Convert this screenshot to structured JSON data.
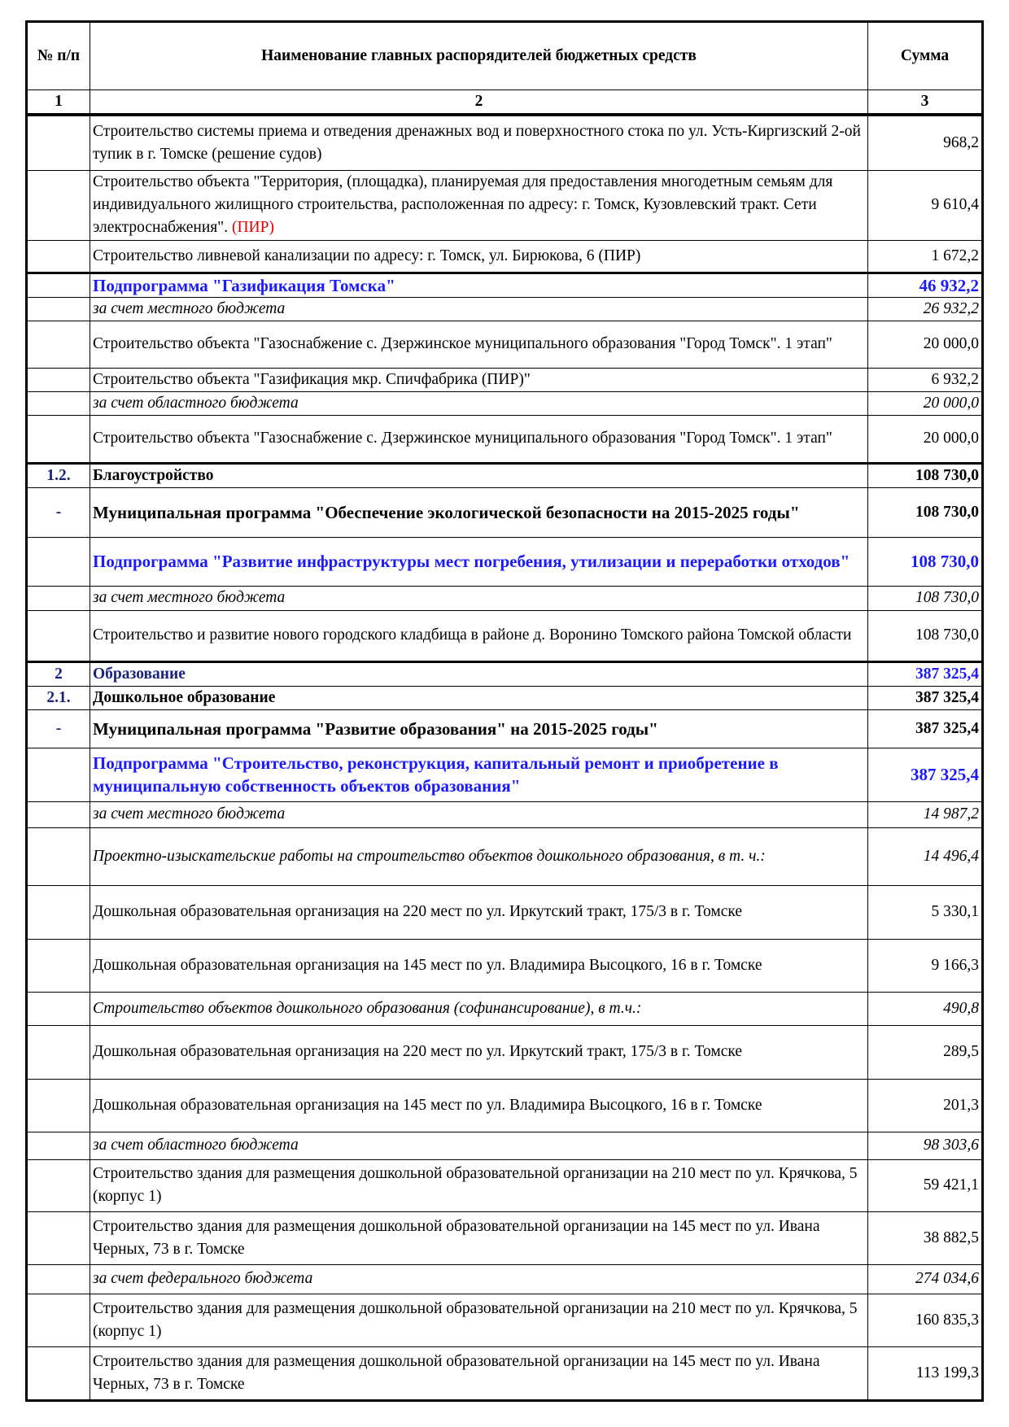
{
  "header": {
    "col1": "№ п/п",
    "col2": "Наименование главных распорядителей бюджетных средств",
    "col3": "Сумма",
    "num1": "1",
    "num2": "2",
    "num3": "3"
  },
  "rows": [
    {
      "num": "",
      "name": "Строительство системы приема и отведения дренажных вод и поверхностного стока по ул. Усть-Киргизский 2-ой тупик в г. Томске (решение судов)",
      "sum": "968,2",
      "style": "normal",
      "h": 68
    },
    {
      "num": "",
      "name": "Строительство объекта \"Территория, (площадка), планируемая для предоставления многодетным семьям для индивидуального жилищного строительства, расположенная по адресу: г. Томск, Кузовлевский тракт. Сети электроснабжения\". ",
      "suffix": "(ПИР)",
      "sum": "9 610,4",
      "style": "normal",
      "h": 86
    },
    {
      "num": "",
      "name": "Строительство ливневой канализации по адресу: г. Томск, ул. Бирюкова, 6 (ПИР)",
      "sum": "1 672,2",
      "style": "normal",
      "h": 40
    },
    {
      "num": "",
      "name": "Подпрограмма \"Газификация Томска\"",
      "sum": "46 932,2",
      "style": "sub thick",
      "h": 30
    },
    {
      "num": "",
      "name": "за счет местного бюджета",
      "sum": "26 932,2",
      "style": "italic",
      "h": 29
    },
    {
      "num": "",
      "name": "Строительство объекта \"Газоснабжение с. Дзержинское муниципального образования \"Город Томск\". 1 этап\"",
      "sum": "20 000,0",
      "style": "normal",
      "h": 58
    },
    {
      "num": "",
      "name": "Строительство объекта \"Газификация мкр. Спичфабрика (ПИР)\"",
      "sum": "6 932,2",
      "style": "normal",
      "h": 29
    },
    {
      "num": "",
      "name": "за счет областного бюджета",
      "sum": "20 000,0",
      "style": "italic",
      "h": 29
    },
    {
      "num": "",
      "name": "Строительство объекта \"Газоснабжение с. Дзержинское муниципального образования \"Город Томск\". 1 этап\"",
      "sum": "20 000,0",
      "style": "normal",
      "h": 59
    },
    {
      "num": "1.2.",
      "name": "Благоустройство",
      "sum": "108 730,0",
      "style": "section thick",
      "h": 29
    },
    {
      "num": "-",
      "name": "Муниципальная программа \"Обеспечение экологической безопасности на 2015-2025 годы\"",
      "sum": "108 730,0",
      "style": "prog",
      "h": 61
    },
    {
      "num": "",
      "name": "Подпрограмма \"Развитие инфраструктуры мест погребения, утилизации и переработки отходов\"",
      "sum": "108 730,0",
      "style": "sub",
      "h": 60
    },
    {
      "num": "",
      "name": "за счет  местного бюджета",
      "sum": "108 730,0",
      "style": "italic",
      "h": 30
    },
    {
      "num": "",
      "name": "Строительство и развитие нового городского кладбища в районе д. Воронино Томского района Томской области",
      "sum": "108 730,0",
      "style": "normal",
      "h": 63
    },
    {
      "num": "2",
      "name": "Образование",
      "sum": "387 325,4",
      "style": "sectionblue thick",
      "h": 29
    },
    {
      "num": "2.1.",
      "name": "Дошкольное образование",
      "sum": "387 325,4",
      "style": "section",
      "h": 29
    },
    {
      "num": "-",
      "name": "Муниципальная программа \"Развитие образования\" на 2015-2025 годы\"",
      "sum": "387 325,4",
      "style": "prog",
      "h": 47
    },
    {
      "num": "",
      "name": "Подпрограмма \"Строительство, реконструкция, капитальный ремонт и приобретение в муниципальную собственность объектов образования\"",
      "sum": "387 325,4",
      "style": "sub",
      "h": 66
    },
    {
      "num": "",
      "name": "за счет местного бюджета",
      "sum": "14 987,2",
      "style": "italic",
      "h": 32
    },
    {
      "num": "",
      "name": "Проектно-изыскательские работы на строительство объектов дошкольного образования, в т. ч.:",
      "sum": "14 496,4",
      "style": "italic",
      "h": 71
    },
    {
      "num": "",
      "name": "Дошкольная образовательная организация на 220 мест по ул. Иркутский тракт, 175/3 в г. Томске",
      "sum": "5 330,1",
      "style": "normal",
      "h": 66
    },
    {
      "num": "",
      "name": "Дошкольная образовательная организация на 145 мест по ул. Владимира Высоцкого, 16 в г. Томске",
      "sum": "9 166,3",
      "style": "normal",
      "h": 65
    },
    {
      "num": "",
      "name": "Строительство объектов дошкольного образования (софинансирование), в т.ч.:",
      "sum": "490,8",
      "style": "italic",
      "h": 41
    },
    {
      "num": "",
      "name": "Дошкольная образовательная организация на 220 мест по ул. Иркутский тракт, 175/3 в г. Томске",
      "sum": "289,5",
      "style": "normal",
      "h": 66
    },
    {
      "num": "",
      "name": "Дошкольная образовательная организация на 145 мест по ул. Владимира Высоцкого, 16 в г. Томске",
      "sum": "201,3",
      "style": "normal",
      "h": 65
    },
    {
      "num": "",
      "name": "за счет областного бюджета",
      "sum": "98 303,6",
      "style": "italic",
      "h": 34
    },
    {
      "num": "",
      "name": "Строительство здания для размещения дошкольной образовательной организации на 210 мест по ул. Крячкова, 5 (корпус 1)",
      "sum": "59 421,1",
      "style": "normal",
      "h": 64
    },
    {
      "num": "",
      "name": "Строительство здания для размещения дошкольной образовательной организации на 145 мест по ул. Ивана Черных, 73 в г. Томске",
      "sum": "38 882,5",
      "style": "normal",
      "h": 65
    },
    {
      "num": "",
      "name": "за счет федерального бюджета",
      "sum": "274 034,6",
      "style": "italic",
      "h": 36
    },
    {
      "num": "",
      "name": "Строительство здания для размещения дошкольной образовательной организации на 210 мест по ул. Крячкова, 5 (корпус 1)",
      "sum": "160 835,3",
      "style": "normal",
      "h": 65
    },
    {
      "num": "",
      "name": "Строительство здания для размещения дошкольной образовательной организации на 145 мест по ул. Ивана Черных, 73 в г. Томске",
      "sum": "113 199,3",
      "style": "normal",
      "h": 66
    }
  ]
}
